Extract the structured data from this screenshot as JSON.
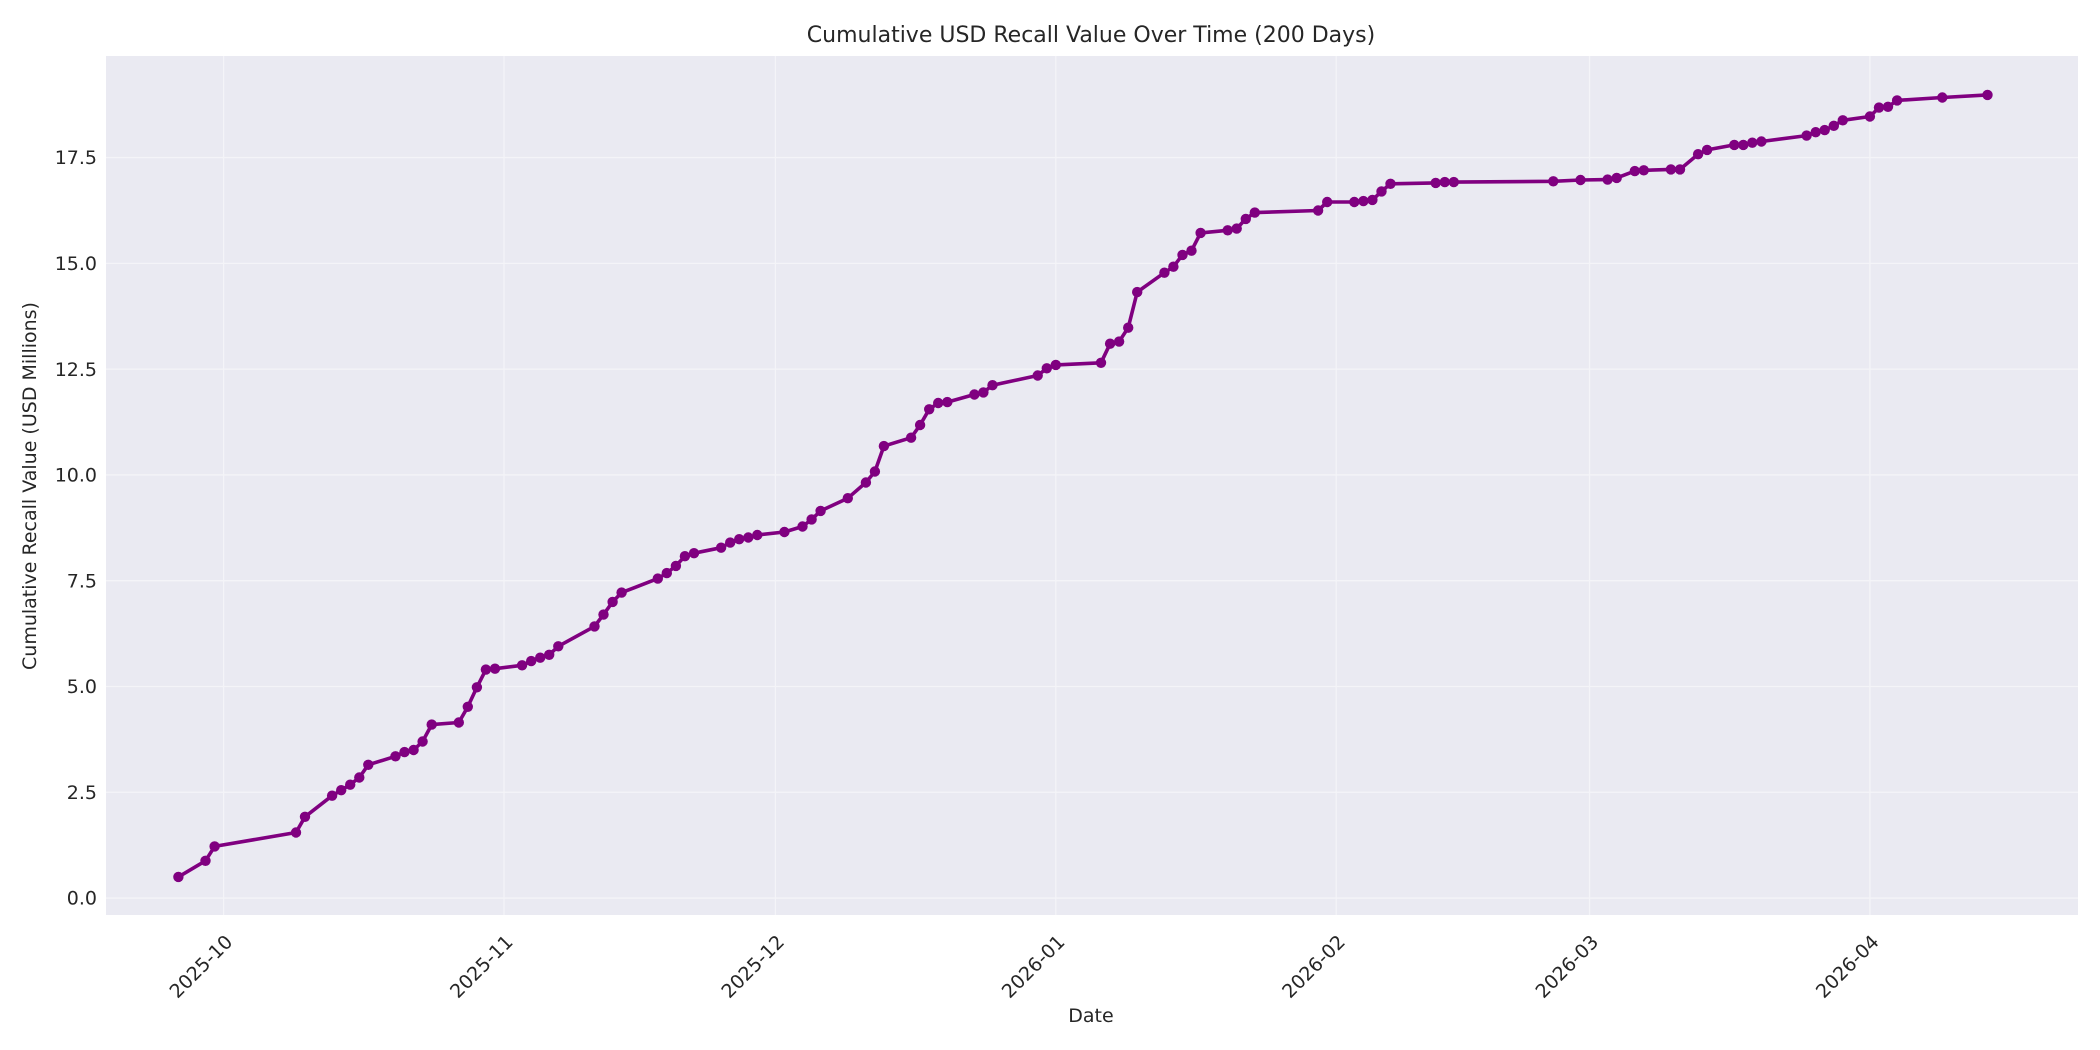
{
  "chart_data": {
    "type": "line",
    "title": "Cumulative USD Recall Value Over Time (200 Days)",
    "xlabel": "Date",
    "ylabel": "Cumulative Recall Value (USD Millions)",
    "x_tick_labels": [
      "2025-10",
      "2025-11",
      "2025-12",
      "2026-01",
      "2026-02",
      "2026-03",
      "2026-04"
    ],
    "x_ticks": [
      "2025-10-01",
      "2025-11-01",
      "2025-12-01",
      "2026-01-01",
      "2026-02-01",
      "2026-03-01",
      "2026-04-01"
    ],
    "y_tick_labels": [
      "0.0",
      "2.5",
      "5.0",
      "7.5",
      "10.0",
      "12.5",
      "15.0",
      "17.5"
    ],
    "y_ticks": [
      0,
      2.5,
      5,
      7.5,
      10,
      12.5,
      15,
      17.5
    ],
    "xlim": [
      "2025-09-18",
      "2026-04-24"
    ],
    "ylim": [
      -0.4,
      19.9
    ],
    "grid": true,
    "colors": {
      "line": "#800080",
      "plot_bg": "#eaeaf2",
      "grid": "#f4f4f8",
      "text": "#262626"
    },
    "x": [
      "2025-09-26",
      "2025-09-29",
      "2025-09-30",
      "2025-10-09",
      "2025-10-10",
      "2025-10-13",
      "2025-10-14",
      "2025-10-15",
      "2025-10-16",
      "2025-10-17",
      "2025-10-20",
      "2025-10-21",
      "2025-10-22",
      "2025-10-23",
      "2025-10-24",
      "2025-10-27",
      "2025-10-28",
      "2025-10-29",
      "2025-10-30",
      "2025-10-31",
      "2025-11-03",
      "2025-11-04",
      "2025-11-05",
      "2025-11-06",
      "2025-11-07",
      "2025-11-11",
      "2025-11-12",
      "2025-11-13",
      "2025-11-14",
      "2025-11-18",
      "2025-11-19",
      "2025-11-20",
      "2025-11-21",
      "2025-11-22",
      "2025-11-25",
      "2025-11-26",
      "2025-11-27",
      "2025-11-28",
      "2025-11-29",
      "2025-12-02",
      "2025-12-04",
      "2025-12-05",
      "2025-12-06",
      "2025-12-09",
      "2025-12-11",
      "2025-12-12",
      "2025-12-13",
      "2025-12-16",
      "2025-12-17",
      "2025-12-18",
      "2025-12-19",
      "2025-12-20",
      "2025-12-23",
      "2025-12-24",
      "2025-12-25",
      "2025-12-30",
      "2025-12-31",
      "2026-01-01",
      "2026-01-06",
      "2026-01-07",
      "2026-01-08",
      "2026-01-09",
      "2026-01-10",
      "2026-01-13",
      "2026-01-14",
      "2026-01-15",
      "2026-01-16",
      "2026-01-17",
      "2026-01-20",
      "2026-01-21",
      "2026-01-22",
      "2026-01-23",
      "2026-01-30",
      "2026-01-31",
      "2026-02-03",
      "2026-02-04",
      "2026-02-05",
      "2026-02-06",
      "2026-02-07",
      "2026-02-12",
      "2026-02-13",
      "2026-02-14",
      "2026-02-25",
      "2026-02-28",
      "2026-03-03",
      "2026-03-04",
      "2026-03-06",
      "2026-03-07",
      "2026-03-10",
      "2026-03-11",
      "2026-03-13",
      "2026-03-14",
      "2026-03-17",
      "2026-03-18",
      "2026-03-19",
      "2026-03-20",
      "2026-03-25",
      "2026-03-26",
      "2026-03-27",
      "2026-03-28",
      "2026-03-29",
      "2026-04-01",
      "2026-04-02",
      "2026-04-03",
      "2026-04-04",
      "2026-04-09",
      "2026-04-14"
    ],
    "series": [
      {
        "values": [
          0.5,
          0.88,
          1.22,
          1.55,
          1.92,
          2.42,
          2.55,
          2.68,
          2.85,
          3.15,
          3.35,
          3.45,
          3.5,
          3.7,
          4.1,
          4.15,
          4.52,
          4.98,
          5.4,
          5.42,
          5.5,
          5.6,
          5.68,
          5.75,
          5.95,
          6.42,
          6.7,
          7.0,
          7.22,
          7.55,
          7.68,
          7.85,
          8.08,
          8.15,
          8.28,
          8.4,
          8.48,
          8.52,
          8.58,
          8.65,
          8.78,
          8.95,
          9.15,
          9.45,
          9.82,
          10.08,
          10.68,
          10.88,
          11.18,
          11.55,
          11.7,
          11.72,
          11.9,
          11.95,
          12.12,
          12.35,
          12.52,
          12.6,
          12.65,
          13.1,
          13.15,
          13.48,
          14.32,
          14.78,
          14.92,
          15.2,
          15.3,
          15.72,
          15.78,
          15.82,
          16.05,
          16.2,
          16.25,
          16.45,
          16.45,
          16.47,
          16.5,
          16.7,
          16.88,
          16.9,
          16.92,
          16.92,
          16.94,
          16.97,
          16.98,
          17.02,
          17.18,
          17.2,
          17.22,
          17.22,
          17.58,
          17.68,
          17.8,
          17.8,
          17.85,
          17.88,
          18.02,
          18.1,
          18.15,
          18.25,
          18.38,
          18.47,
          18.68,
          18.7,
          18.85,
          18.92,
          18.98
        ]
      }
    ]
  }
}
